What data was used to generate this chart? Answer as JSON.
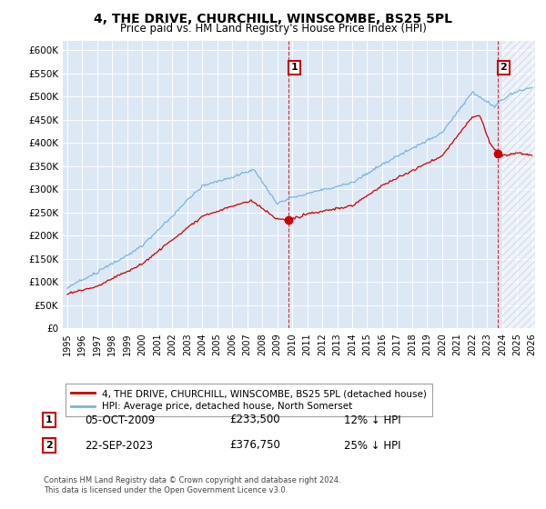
{
  "title": "4, THE DRIVE, CHURCHILL, WINSCOMBE, BS25 5PL",
  "subtitle": "Price paid vs. HM Land Registry's House Price Index (HPI)",
  "ylabel_ticks": [
    "£0",
    "£50K",
    "£100K",
    "£150K",
    "£200K",
    "£250K",
    "£300K",
    "£350K",
    "£400K",
    "£450K",
    "£500K",
    "£550K",
    "£600K"
  ],
  "ylim": [
    0,
    620000
  ],
  "yticks": [
    0,
    50000,
    100000,
    150000,
    200000,
    250000,
    300000,
    350000,
    400000,
    450000,
    500000,
    550000,
    600000
  ],
  "xmin_year": 1995,
  "xmax_year": 2026,
  "xtick_years": [
    1995,
    1996,
    1997,
    1998,
    1999,
    2000,
    2001,
    2002,
    2003,
    2004,
    2005,
    2006,
    2007,
    2008,
    2009,
    2010,
    2011,
    2012,
    2013,
    2014,
    2015,
    2016,
    2017,
    2018,
    2019,
    2020,
    2021,
    2022,
    2023,
    2024,
    2025,
    2026
  ],
  "hpi_color": "#7ab5d9",
  "sale_color": "#cc0000",
  "annotation_color": "#cc0000",
  "vline_color": "#cc0000",
  "plot_bg": "#dde8f5",
  "hatch_color": "#c0ccdd",
  "legend_label_sale": "4, THE DRIVE, CHURCHILL, WINSCOMBE, BS25 5PL (detached house)",
  "legend_label_hpi": "HPI: Average price, detached house, North Somerset",
  "sale1_year": 2009.77,
  "sale1_price": 233500,
  "sale1_label": "1",
  "sale2_year": 2023.72,
  "sale2_price": 376750,
  "sale2_label": "2",
  "note1_date": "05-OCT-2009",
  "note1_price": "£233,500",
  "note1_pct": "12% ↓ HPI",
  "note2_date": "22-SEP-2023",
  "note2_price": "£376,750",
  "note2_pct": "25% ↓ HPI",
  "footer": "Contains HM Land Registry data © Crown copyright and database right 2024.\nThis data is licensed under the Open Government Licence v3.0."
}
